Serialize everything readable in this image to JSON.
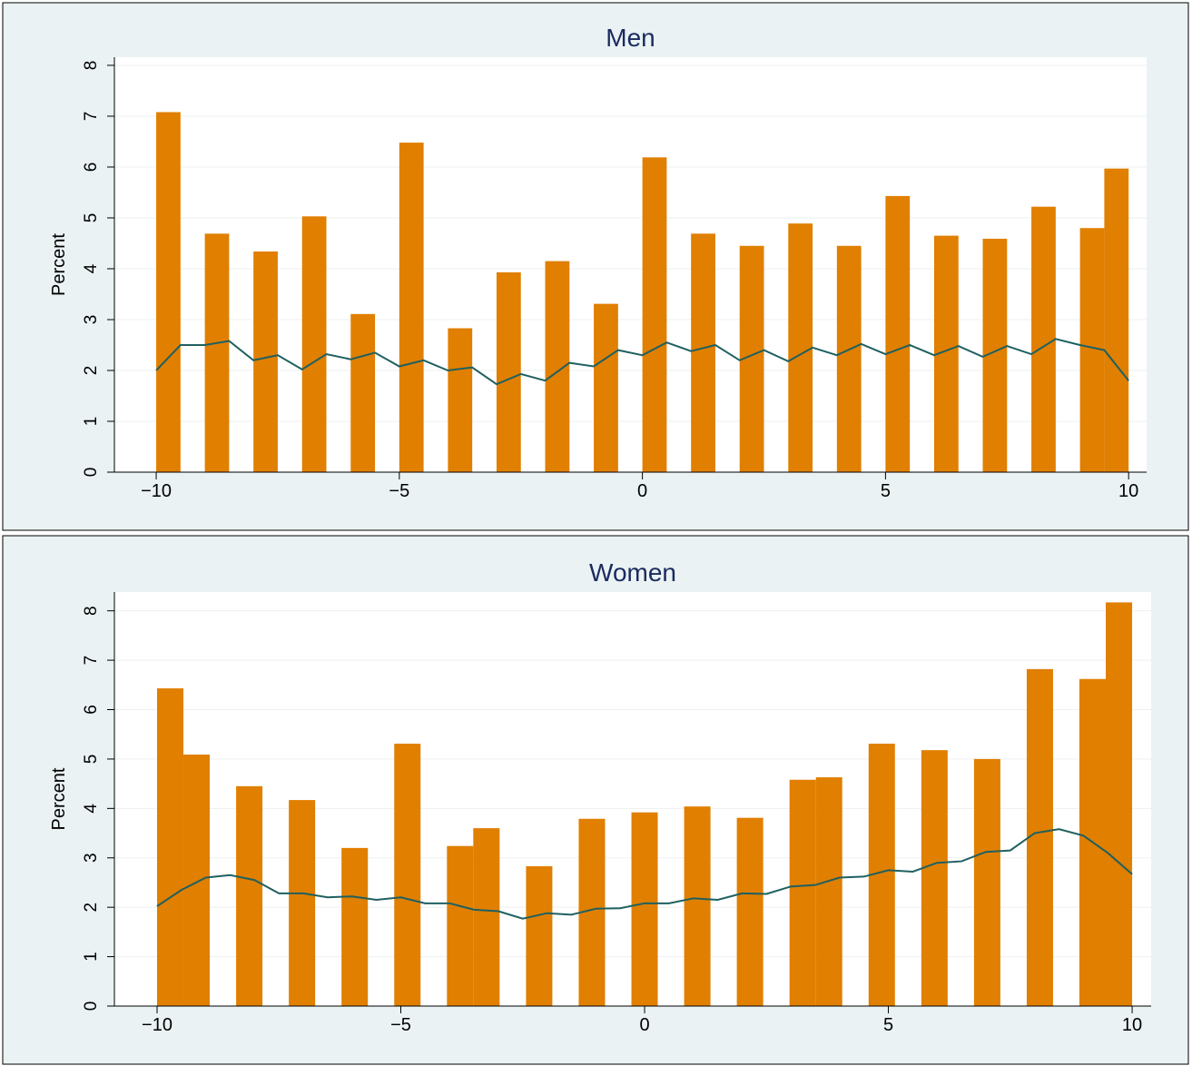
{
  "chart_data": [
    {
      "type": "histogram",
      "title": "Men",
      "ylabel": "Percent",
      "color": "#e07f00",
      "bins": [
        -10,
        -9.5,
        -9,
        -8.5,
        -8,
        -7.5,
        -7,
        -6.5,
        -6,
        -5.5,
        -5,
        -4.5,
        -4,
        -3.5,
        -3,
        -2.5,
        -2,
        -1.5,
        -1,
        -0.5,
        0,
        0.5,
        1,
        1.5,
        2,
        2.5,
        3,
        3.5,
        4,
        4.5,
        5,
        5.5,
        6,
        6.5,
        7,
        7.5,
        8,
        8.5,
        9,
        9.5,
        10
      ],
      "values": [
        7.08,
        0,
        4.69,
        0,
        4.34,
        0,
        5.03,
        0,
        3.11,
        0,
        6.48,
        0,
        2.83,
        0,
        3.93,
        0,
        4.15,
        0,
        3.31,
        0,
        6.19,
        0,
        4.69,
        0,
        4.45,
        0,
        4.89,
        0,
        4.45,
        0,
        5.43,
        0,
        4.65,
        0,
        4.59,
        0,
        5.22,
        0,
        4.8,
        5.97
      ],
      "density": {
        "color": "#1f6060",
        "x": [
          -10,
          -9.5,
          -9,
          -8.5,
          -8,
          -7.5,
          -7,
          -6.5,
          -6,
          -5.5,
          -5,
          -4.5,
          -4,
          -3.5,
          -3,
          -2.5,
          -2,
          -1.5,
          -1,
          -0.5,
          0,
          0.5,
          1,
          1.5,
          2,
          2.5,
          3,
          3.5,
          4,
          4.5,
          5,
          5.5,
          6,
          6.5,
          7,
          7.5,
          8,
          8.5,
          9,
          9.5,
          10
        ],
        "values": [
          2.0,
          2.5,
          2.5,
          2.58,
          2.2,
          2.3,
          2.02,
          2.32,
          2.22,
          2.35,
          2.08,
          2.2,
          2.0,
          2.06,
          1.73,
          1.93,
          1.8,
          2.15,
          2.08,
          2.4,
          2.3,
          2.55,
          2.38,
          2.5,
          2.2,
          2.4,
          2.18,
          2.45,
          2.3,
          2.52,
          2.32,
          2.5,
          2.3,
          2.48,
          2.27,
          2.48,
          2.32,
          2.62,
          2.5,
          2.4,
          1.8
        ]
      },
      "xlim": [
        -10.86,
        10.37
      ],
      "ylim": [
        0,
        8.16
      ],
      "xticks": [
        {
          "value": -10,
          "label": "−10"
        },
        {
          "value": -5,
          "label": "−5"
        },
        0,
        5,
        10
      ],
      "yticks": [
        0,
        1,
        2,
        3,
        4,
        5,
        6,
        7,
        8
      ],
      "grid": true
    },
    {
      "type": "histogram",
      "title": "Women",
      "ylabel": "Percent",
      "color": "#e07f00",
      "bins": [
        -10,
        -9.459,
        -8.919,
        -8.378,
        -7.838,
        -7.297,
        -6.757,
        -6.216,
        -5.676,
        -5.135,
        -4.595,
        -4.054,
        -3.514,
        -2.973,
        -2.432,
        -1.892,
        -1.351,
        -0.811,
        -0.27,
        0.27,
        0.811,
        1.351,
        1.892,
        2.432,
        2.973,
        3.514,
        4.054,
        4.595,
        5.135,
        5.676,
        6.216,
        6.757,
        7.297,
        7.838,
        8.378,
        8.919,
        9.459,
        10
      ],
      "values": [
        6.43,
        5.09,
        0,
        4.45,
        0,
        4.17,
        0,
        3.2,
        0,
        5.31,
        0,
        3.24,
        3.6,
        0,
        2.83,
        0,
        3.79,
        0,
        3.92,
        0,
        4.04,
        0,
        3.81,
        0,
        4.58,
        4.63,
        0,
        5.31,
        0,
        5.18,
        0,
        5.0,
        0,
        6.82,
        0,
        6.62,
        8.17
      ],
      "density": {
        "color": "#1f6060",
        "x": [
          -10,
          -9.5,
          -9,
          -8.5,
          -8,
          -7.5,
          -7,
          -6.5,
          -6,
          -5.5,
          -5,
          -4.5,
          -4,
          -3.5,
          -3,
          -2.5,
          -2,
          -1.5,
          -1,
          -0.5,
          0,
          0.5,
          1,
          1.5,
          2,
          2.5,
          3,
          3.5,
          4,
          4.5,
          5,
          5.5,
          6,
          6.5,
          7,
          7.5,
          8,
          8.5,
          9,
          9.5,
          10
        ],
        "values": [
          2.02,
          2.35,
          2.6,
          2.65,
          2.55,
          2.28,
          2.28,
          2.2,
          2.22,
          2.15,
          2.2,
          2.08,
          2.08,
          1.95,
          1.92,
          1.77,
          1.88,
          1.85,
          1.97,
          1.98,
          2.08,
          2.08,
          2.18,
          2.15,
          2.28,
          2.27,
          2.42,
          2.45,
          2.6,
          2.62,
          2.75,
          2.72,
          2.9,
          2.93,
          3.12,
          3.15,
          3.5,
          3.58,
          3.45,
          3.1,
          2.67
        ]
      },
      "xlim": [
        -10.875,
        10.39
      ],
      "ylim": [
        0,
        8.38
      ],
      "xticks": [
        {
          "value": -10,
          "label": "−10"
        },
        {
          "value": -5,
          "label": "−5"
        },
        0,
        5,
        10
      ],
      "yticks": [
        0,
        1,
        2,
        3,
        4,
        5,
        6,
        7,
        8
      ],
      "grid": true
    }
  ]
}
